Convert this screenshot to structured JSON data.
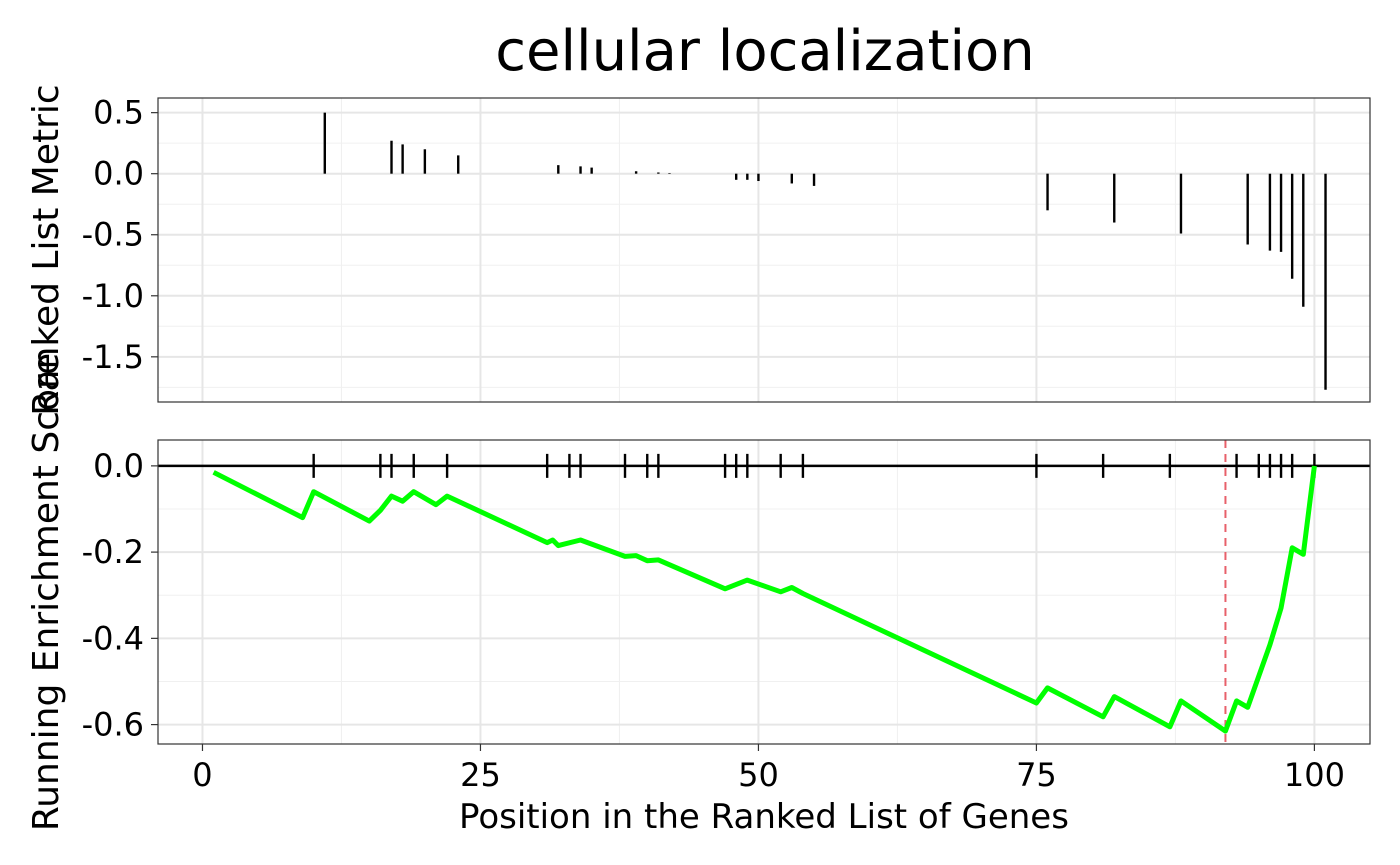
{
  "title": "cellular localization",
  "chart_data": [
    {
      "type": "bar",
      "name": "ranked-list-metric",
      "ylabel": "Ranked List Metric",
      "xlim": [
        -4,
        105
      ],
      "ylim": [
        -1.87,
        0.62
      ],
      "yticks": [
        0.5,
        0.0,
        -0.5,
        -1.0,
        -1.5
      ],
      "ytick_labels": [
        "0.5",
        "0.0",
        "-0.5",
        "-1.0",
        "-1.5"
      ],
      "grid": true,
      "x": [
        11,
        17,
        18,
        20,
        23,
        32,
        34,
        35,
        39,
        41,
        42,
        48,
        49,
        50,
        53,
        55,
        76,
        82,
        88,
        94,
        96,
        97,
        98,
        99,
        101
      ],
      "values": [
        0.5,
        0.27,
        0.24,
        0.2,
        0.15,
        0.07,
        0.06,
        0.05,
        0.02,
        0.01,
        0.005,
        -0.05,
        -0.05,
        -0.06,
        -0.08,
        -0.1,
        -0.3,
        -0.4,
        -0.49,
        -0.58,
        -0.63,
        -0.64,
        -0.86,
        -1.09,
        -1.77
      ]
    },
    {
      "type": "line",
      "name": "running-enrichment-score",
      "ylabel": "Running Enrichment Score",
      "xlabel": "Position in the Ranked List of Genes",
      "xlim": [
        -4,
        105
      ],
      "ylim": [
        -0.645,
        0.06
      ],
      "xticks": [
        0,
        25,
        50,
        75,
        100
      ],
      "xtick_labels": [
        "0",
        "25",
        "50",
        "75",
        "100"
      ],
      "yticks": [
        0.0,
        -0.2,
        -0.4,
        -0.6
      ],
      "ytick_labels": [
        "0.0",
        "-0.2",
        "-0.4",
        "-0.6"
      ],
      "grid": true,
      "line_color": "#00ff00",
      "x": [
        1,
        9,
        10,
        15,
        16,
        17,
        18,
        19,
        21,
        22,
        31,
        31.5,
        32,
        34,
        38,
        39,
        40,
        41,
        47,
        49,
        52,
        53,
        54,
        75,
        76,
        81,
        82,
        87,
        88,
        92,
        93,
        94,
        96,
        97,
        98,
        99,
        100
      ],
      "y": [
        -0.015,
        -0.12,
        -0.06,
        -0.128,
        -0.103,
        -0.07,
        -0.082,
        -0.06,
        -0.09,
        -0.07,
        -0.178,
        -0.172,
        -0.185,
        -0.172,
        -0.21,
        -0.208,
        -0.22,
        -0.218,
        -0.285,
        -0.265,
        -0.292,
        -0.282,
        -0.296,
        -0.55,
        -0.515,
        -0.582,
        -0.535,
        -0.605,
        -0.545,
        -0.615,
        -0.545,
        -0.56,
        -0.415,
        -0.33,
        -0.19,
        -0.205,
        0.0
      ],
      "hit_positions": [
        10,
        16,
        17,
        19,
        22,
        31,
        33,
        34,
        38,
        40,
        41,
        47,
        48,
        49,
        52,
        54,
        75,
        81,
        87,
        93,
        95,
        96,
        97,
        98,
        100
      ],
      "max_deviation_x": 92,
      "max_deviation_color": "#e8606a"
    }
  ]
}
